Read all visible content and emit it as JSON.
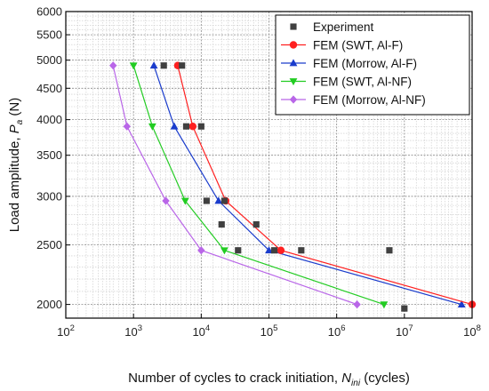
{
  "chart_data": {
    "type": "line",
    "xlabel_parts": [
      "Number of cycles to crack initiation, ",
      "N",
      "ini",
      " (cycles)"
    ],
    "ylabel_parts": [
      "Load amplitude, ",
      "P",
      "a",
      " (N)"
    ],
    "x_scale": "log",
    "y_scale": "log",
    "xlim": [
      100,
      100000000
    ],
    "ylim": [
      1900,
      6000
    ],
    "x_ticks": [
      100,
      1000,
      10000,
      100000,
      1000000,
      10000000,
      100000000
    ],
    "x_tick_labels": [
      {
        "base": "10",
        "exp": "2"
      },
      {
        "base": "10",
        "exp": "3"
      },
      {
        "base": "10",
        "exp": "4"
      },
      {
        "base": "10",
        "exp": "5"
      },
      {
        "base": "10",
        "exp": "6"
      },
      {
        "base": "10",
        "exp": "7"
      },
      {
        "base": "10",
        "exp": "8"
      }
    ],
    "y_ticks": [
      2000,
      2500,
      3000,
      3500,
      4000,
      4500,
      5000,
      5500,
      6000
    ],
    "y_tick_labels": [
      "2000",
      "2500",
      "3000",
      "3500",
      "4000",
      "4500",
      "5000",
      "5500",
      "6000"
    ],
    "grid": true,
    "legend_position": "top-right",
    "series": [
      {
        "name": "Experiment",
        "color": "#404040",
        "marker": "square",
        "line": false,
        "points": [
          [
            2800,
            4900
          ],
          [
            5200,
            4900
          ],
          [
            6000,
            3900
          ],
          [
            10000,
            3900
          ],
          [
            12000,
            2950
          ],
          [
            22000,
            2950
          ],
          [
            20000,
            2700
          ],
          [
            65000,
            2700
          ],
          [
            35000,
            2450
          ],
          [
            120000,
            2450
          ],
          [
            300000,
            2450
          ],
          [
            6000000,
            2450
          ],
          [
            10000000,
            1970
          ]
        ]
      },
      {
        "name": "FEM (SWT, Al-F)",
        "color": "#ff2020",
        "marker": "circle",
        "line": true,
        "points": [
          [
            4500,
            4900
          ],
          [
            7500,
            3900
          ],
          [
            23000,
            2950
          ],
          [
            150000,
            2450
          ],
          [
            100000000,
            2000
          ]
        ]
      },
      {
        "name": "FEM (Morrow, Al-F)",
        "color": "#1a3ccc",
        "marker": "triangle-up",
        "line": true,
        "points": [
          [
            2000,
            4900
          ],
          [
            4000,
            3900
          ],
          [
            18000,
            2950
          ],
          [
            100000,
            2450
          ],
          [
            70000000,
            2000
          ]
        ]
      },
      {
        "name": "FEM (SWT, Al-NF)",
        "color": "#22cc22",
        "marker": "triangle-down",
        "line": true,
        "points": [
          [
            1000,
            4900
          ],
          [
            1900,
            3900
          ],
          [
            5800,
            2950
          ],
          [
            22000,
            2450
          ],
          [
            5000000,
            2000
          ]
        ]
      },
      {
        "name": "FEM (Morrow, Al-NF)",
        "color": "#b966e8",
        "marker": "diamond",
        "line": true,
        "points": [
          [
            500,
            4900
          ],
          [
            800,
            3900
          ],
          [
            3000,
            2950
          ],
          [
            10000,
            2450
          ],
          [
            2000000,
            2000
          ]
        ]
      }
    ]
  }
}
